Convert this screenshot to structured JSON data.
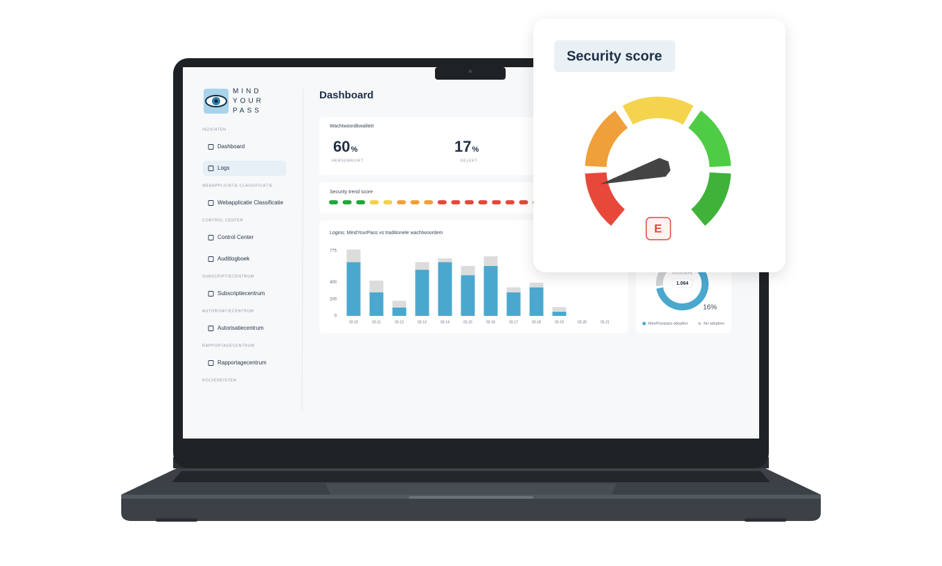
{
  "logo": [
    "MIND",
    "YOUR",
    "PASS"
  ],
  "sidebar": [
    {
      "heading": "INZICHTEN",
      "items": [
        "Dashboard",
        "Logs"
      ]
    },
    {
      "heading": "WEBAPPLICATIE CLASSIFICATIE",
      "items": [
        "Webapplicatie Classificatie"
      ]
    },
    {
      "heading": "CONTROL CENTER",
      "items": [
        "Control Center",
        "Auditlogboek"
      ]
    },
    {
      "heading": "SUBSCRIPTIECENTRUM",
      "items": [
        "Subscriptiecentrum"
      ]
    },
    {
      "heading": "AUTORISATIECENTRUM",
      "items": [
        "Autorisatiecentrum"
      ]
    },
    {
      "heading": "RAPPORTAGECENTRUM",
      "items": [
        "Rapportagecentrum"
      ]
    },
    {
      "heading": "ROLVEREISTEN",
      "items": []
    }
  ],
  "active_item": "Logs",
  "page_title": "Dashboard",
  "quality": {
    "title": "Wachtwoordkwaliteit",
    "stats": [
      {
        "value": "60",
        "unit": "%",
        "label": "HERGEBRUIKT"
      },
      {
        "value": "17",
        "unit": "%",
        "label": "GELEKT"
      }
    ]
  },
  "trend": {
    "title": "Security trend score",
    "colors": [
      "#22a83a",
      "#22a83a",
      "#22a83a",
      "#f2d04a",
      "#f2d04a",
      "#f0a03a",
      "#f0a03a",
      "#f0a03a",
      "#e4483a",
      "#e4483a",
      "#e4483a",
      "#e4483a",
      "#e4483a",
      "#e4483a",
      "#e4483a",
      "#e4483a"
    ]
  },
  "chart_data": {
    "type": "bar",
    "stacked": true,
    "title": "Logins: MindYourPass vs traditionele wachtwoordem",
    "categories": [
      "02-10",
      "02-11",
      "02-12",
      "02-13",
      "02-14",
      "02-15",
      "02-16",
      "02-17",
      "02-18",
      "02-19",
      "02-20",
      "02-21"
    ],
    "series": [
      {
        "color": "#4aa8cf",
        "values": [
          640,
          280,
          100,
          550,
          640,
          485,
          595,
          280,
          340,
          50,
          0,
          0
        ]
      },
      {
        "color": "#dcdcdc",
        "values": [
          150,
          140,
          80,
          90,
          45,
          110,
          115,
          60,
          55,
          55,
          0,
          0
        ]
      }
    ],
    "ylim": [
      0,
      775
    ],
    "yticks": [
      0,
      200,
      400,
      775
    ]
  },
  "donut": {
    "center_label": "ACCOUNTS",
    "center_value": "1.064",
    "segments": [
      {
        "name": "MindYourpass adoption",
        "value": 84,
        "color": "#4aa8cf"
      },
      {
        "name": "No adoption",
        "value": 16,
        "value_label": "16%",
        "color": "#cfd3d6"
      }
    ]
  },
  "score_card": {
    "title": "Security score",
    "grade": "E"
  }
}
